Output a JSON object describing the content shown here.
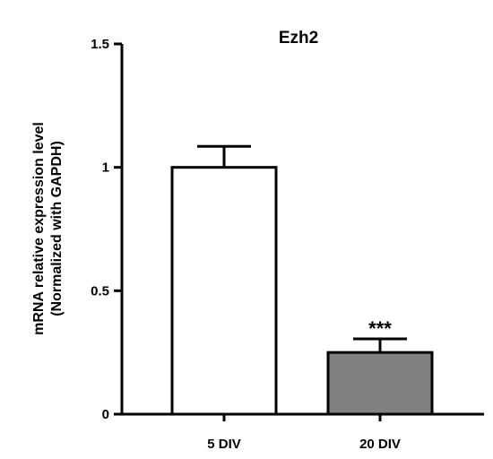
{
  "chart_data": {
    "type": "bar",
    "title": "Ezh2",
    "ylabel": [
      "mRNA relative expression level",
      "(Normalized with GAPDH)"
    ],
    "xlabel": "",
    "ylim": [
      0,
      1.5
    ],
    "yticks": [
      0,
      0.5,
      1,
      1.5
    ],
    "ytick_labels": [
      "0",
      "0.5",
      "1",
      "1.5"
    ],
    "categories": [
      "5 DIV",
      "20 DIV"
    ],
    "values": [
      1.0,
      0.25
    ],
    "errors": [
      0.085,
      0.055
    ],
    "bar_colors": [
      "#ffffff",
      "#808080"
    ],
    "annotations": [
      "",
      "***"
    ],
    "grid": false,
    "legend": "none"
  }
}
